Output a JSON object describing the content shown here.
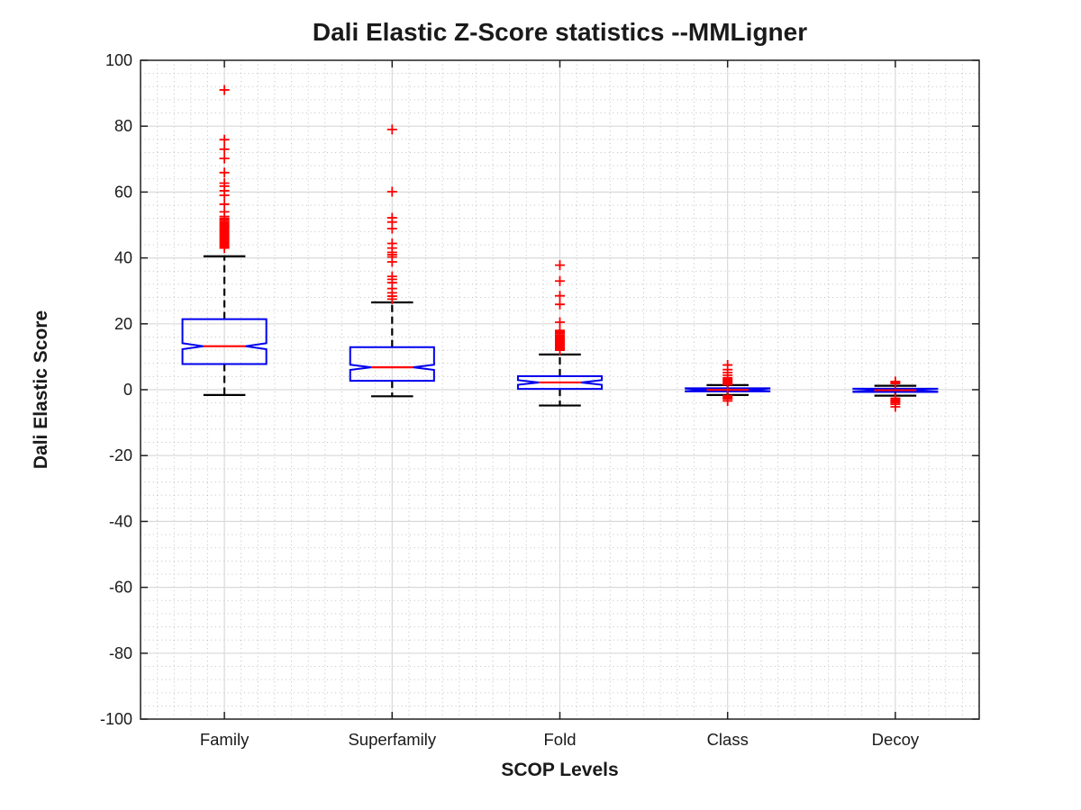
{
  "chart_data": {
    "type": "boxplot",
    "title": "Dali Elastic Z-Score statistics --MMLigner",
    "xlabel": "SCOP Levels",
    "ylabel": "Dali Elastic Score",
    "ylim": [
      -100,
      100
    ],
    "ytick_step": 20,
    "grid": {
      "major": true,
      "minor": true,
      "y_minor_step": 4,
      "x_minor_divisions_per_category": 10
    },
    "legend": null,
    "style": {
      "box_color": "#0000ee",
      "median_color": "#ff0000",
      "outlier_color": "#ff0000",
      "whisker_color": "#000000",
      "axis_color": "#202020",
      "text_color": "#1a1a1a",
      "grid_major_color": "#d9d9d9",
      "grid_minor_color": "#ababab",
      "background": "#ffffff"
    },
    "categories": [
      "Family",
      "Superfamily",
      "Fold",
      "Class",
      "Decoy"
    ],
    "boxes": [
      {
        "category": "Family",
        "whisker_low": -1.6,
        "q1": 7.8,
        "median": 13.2,
        "q3": 21.4,
        "whisker_high": 40.5,
        "notch_half": 0.9,
        "outliers_high": [
          43.0,
          43.4,
          43.8,
          44.2,
          44.6,
          45.0,
          45.4,
          45.8,
          46.2,
          46.6,
          47.0,
          47.4,
          47.8,
          48.2,
          48.6,
          49.0,
          49.4,
          49.8,
          50.2,
          50.6,
          51.0,
          51.5,
          52.0,
          52.6,
          54.0,
          56.3,
          59.0,
          60.4,
          61.8,
          62.7,
          65.9,
          70.2,
          73.0,
          75.9,
          91.0
        ],
        "outliers_low": []
      },
      {
        "category": "Superfamily",
        "whisker_low": -2.0,
        "q1": 2.7,
        "median": 6.8,
        "q3": 12.9,
        "whisker_high": 26.5,
        "notch_half": 0.8,
        "outliers_high": [
          27.5,
          28.4,
          29.4,
          30.7,
          32.5,
          33.5,
          34.4,
          38.8,
          40.3,
          41.0,
          41.7,
          43.0,
          44.4,
          48.9,
          50.9,
          52.2,
          60.1,
          79.0
        ],
        "outliers_low": []
      },
      {
        "category": "Fold",
        "whisker_low": -4.8,
        "q1": 0.25,
        "median": 2.2,
        "q3": 4.1,
        "whisker_high": 10.7,
        "notch_half": 0.7,
        "outliers_high": [
          12.0,
          12.4,
          12.8,
          13.2,
          13.6,
          14.0,
          14.4,
          14.8,
          15.2,
          15.6,
          16.0,
          16.5,
          17.0,
          17.5,
          18.0,
          20.5,
          25.9,
          28.5,
          33.0,
          37.8
        ],
        "outliers_low": []
      },
      {
        "category": "Class",
        "whisker_low": -1.6,
        "q1": -0.5,
        "median": -0.05,
        "q3": 0.45,
        "whisker_high": 1.4,
        "notch_half": 0.4,
        "outliers_high": [
          1.5,
          1.6,
          1.7,
          1.8,
          1.9,
          2.0,
          2.1,
          2.2,
          2.3,
          2.4,
          2.5,
          2.6,
          2.8,
          3.0,
          3.2,
          3.4,
          3.6,
          4.4,
          5.2,
          6.1,
          7.5
        ],
        "outliers_low": [
          -1.8,
          -2.0,
          -2.2,
          -2.4,
          -2.6,
          -2.8,
          -3.4
        ]
      },
      {
        "category": "Decoy",
        "whisker_low": -1.8,
        "q1": -0.7,
        "median": -0.15,
        "q3": 0.3,
        "whisker_high": 1.2,
        "notch_half": 0.4,
        "outliers_high": [
          1.9,
          2.2,
          2.5
        ],
        "outliers_low": [
          -2.6,
          -3.0,
          -3.4,
          -3.9,
          -4.4,
          -5.2
        ]
      }
    ]
  }
}
